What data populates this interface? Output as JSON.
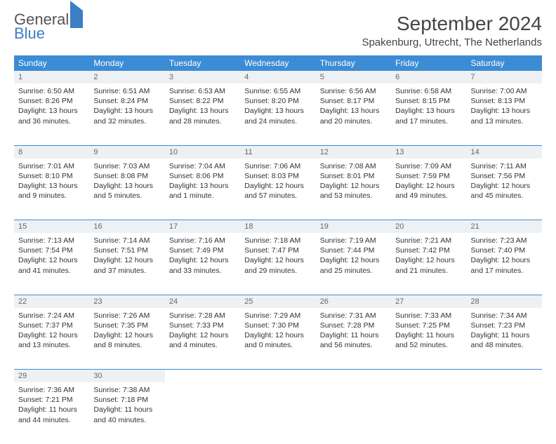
{
  "logo": {
    "line1": "General",
    "line2": "Blue"
  },
  "title": "September 2024",
  "location": "Spakenburg, Utrecht, The Netherlands",
  "colors": {
    "header_bg": "#3b8cd4",
    "daynum_bg": "#eef1f4",
    "accent": "#3b7fc4"
  },
  "day_names": [
    "Sunday",
    "Monday",
    "Tuesday",
    "Wednesday",
    "Thursday",
    "Friday",
    "Saturday"
  ],
  "weeks": [
    [
      {
        "n": "1",
        "sr": "Sunrise: 6:50 AM",
        "ss": "Sunset: 8:26 PM",
        "d1": "Daylight: 13 hours",
        "d2": "and 36 minutes."
      },
      {
        "n": "2",
        "sr": "Sunrise: 6:51 AM",
        "ss": "Sunset: 8:24 PM",
        "d1": "Daylight: 13 hours",
        "d2": "and 32 minutes."
      },
      {
        "n": "3",
        "sr": "Sunrise: 6:53 AM",
        "ss": "Sunset: 8:22 PM",
        "d1": "Daylight: 13 hours",
        "d2": "and 28 minutes."
      },
      {
        "n": "4",
        "sr": "Sunrise: 6:55 AM",
        "ss": "Sunset: 8:20 PM",
        "d1": "Daylight: 13 hours",
        "d2": "and 24 minutes."
      },
      {
        "n": "5",
        "sr": "Sunrise: 6:56 AM",
        "ss": "Sunset: 8:17 PM",
        "d1": "Daylight: 13 hours",
        "d2": "and 20 minutes."
      },
      {
        "n": "6",
        "sr": "Sunrise: 6:58 AM",
        "ss": "Sunset: 8:15 PM",
        "d1": "Daylight: 13 hours",
        "d2": "and 17 minutes."
      },
      {
        "n": "7",
        "sr": "Sunrise: 7:00 AM",
        "ss": "Sunset: 8:13 PM",
        "d1": "Daylight: 13 hours",
        "d2": "and 13 minutes."
      }
    ],
    [
      {
        "n": "8",
        "sr": "Sunrise: 7:01 AM",
        "ss": "Sunset: 8:10 PM",
        "d1": "Daylight: 13 hours",
        "d2": "and 9 minutes."
      },
      {
        "n": "9",
        "sr": "Sunrise: 7:03 AM",
        "ss": "Sunset: 8:08 PM",
        "d1": "Daylight: 13 hours",
        "d2": "and 5 minutes."
      },
      {
        "n": "10",
        "sr": "Sunrise: 7:04 AM",
        "ss": "Sunset: 8:06 PM",
        "d1": "Daylight: 13 hours",
        "d2": "and 1 minute."
      },
      {
        "n": "11",
        "sr": "Sunrise: 7:06 AM",
        "ss": "Sunset: 8:03 PM",
        "d1": "Daylight: 12 hours",
        "d2": "and 57 minutes."
      },
      {
        "n": "12",
        "sr": "Sunrise: 7:08 AM",
        "ss": "Sunset: 8:01 PM",
        "d1": "Daylight: 12 hours",
        "d2": "and 53 minutes."
      },
      {
        "n": "13",
        "sr": "Sunrise: 7:09 AM",
        "ss": "Sunset: 7:59 PM",
        "d1": "Daylight: 12 hours",
        "d2": "and 49 minutes."
      },
      {
        "n": "14",
        "sr": "Sunrise: 7:11 AM",
        "ss": "Sunset: 7:56 PM",
        "d1": "Daylight: 12 hours",
        "d2": "and 45 minutes."
      }
    ],
    [
      {
        "n": "15",
        "sr": "Sunrise: 7:13 AM",
        "ss": "Sunset: 7:54 PM",
        "d1": "Daylight: 12 hours",
        "d2": "and 41 minutes."
      },
      {
        "n": "16",
        "sr": "Sunrise: 7:14 AM",
        "ss": "Sunset: 7:51 PM",
        "d1": "Daylight: 12 hours",
        "d2": "and 37 minutes."
      },
      {
        "n": "17",
        "sr": "Sunrise: 7:16 AM",
        "ss": "Sunset: 7:49 PM",
        "d1": "Daylight: 12 hours",
        "d2": "and 33 minutes."
      },
      {
        "n": "18",
        "sr": "Sunrise: 7:18 AM",
        "ss": "Sunset: 7:47 PM",
        "d1": "Daylight: 12 hours",
        "d2": "and 29 minutes."
      },
      {
        "n": "19",
        "sr": "Sunrise: 7:19 AM",
        "ss": "Sunset: 7:44 PM",
        "d1": "Daylight: 12 hours",
        "d2": "and 25 minutes."
      },
      {
        "n": "20",
        "sr": "Sunrise: 7:21 AM",
        "ss": "Sunset: 7:42 PM",
        "d1": "Daylight: 12 hours",
        "d2": "and 21 minutes."
      },
      {
        "n": "21",
        "sr": "Sunrise: 7:23 AM",
        "ss": "Sunset: 7:40 PM",
        "d1": "Daylight: 12 hours",
        "d2": "and 17 minutes."
      }
    ],
    [
      {
        "n": "22",
        "sr": "Sunrise: 7:24 AM",
        "ss": "Sunset: 7:37 PM",
        "d1": "Daylight: 12 hours",
        "d2": "and 13 minutes."
      },
      {
        "n": "23",
        "sr": "Sunrise: 7:26 AM",
        "ss": "Sunset: 7:35 PM",
        "d1": "Daylight: 12 hours",
        "d2": "and 8 minutes."
      },
      {
        "n": "24",
        "sr": "Sunrise: 7:28 AM",
        "ss": "Sunset: 7:33 PM",
        "d1": "Daylight: 12 hours",
        "d2": "and 4 minutes."
      },
      {
        "n": "25",
        "sr": "Sunrise: 7:29 AM",
        "ss": "Sunset: 7:30 PM",
        "d1": "Daylight: 12 hours",
        "d2": "and 0 minutes."
      },
      {
        "n": "26",
        "sr": "Sunrise: 7:31 AM",
        "ss": "Sunset: 7:28 PM",
        "d1": "Daylight: 11 hours",
        "d2": "and 56 minutes."
      },
      {
        "n": "27",
        "sr": "Sunrise: 7:33 AM",
        "ss": "Sunset: 7:25 PM",
        "d1": "Daylight: 11 hours",
        "d2": "and 52 minutes."
      },
      {
        "n": "28",
        "sr": "Sunrise: 7:34 AM",
        "ss": "Sunset: 7:23 PM",
        "d1": "Daylight: 11 hours",
        "d2": "and 48 minutes."
      }
    ],
    [
      {
        "n": "29",
        "sr": "Sunrise: 7:36 AM",
        "ss": "Sunset: 7:21 PM",
        "d1": "Daylight: 11 hours",
        "d2": "and 44 minutes."
      },
      {
        "n": "30",
        "sr": "Sunrise: 7:38 AM",
        "ss": "Sunset: 7:18 PM",
        "d1": "Daylight: 11 hours",
        "d2": "and 40 minutes."
      },
      null,
      null,
      null,
      null,
      null
    ]
  ]
}
